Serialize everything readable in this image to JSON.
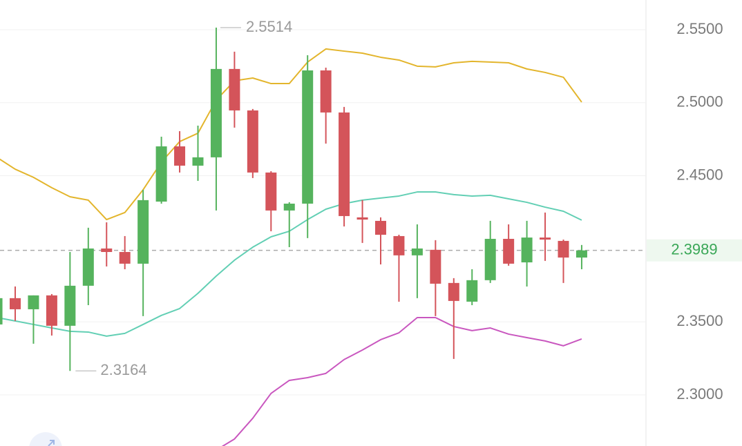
{
  "chart_data": {
    "type": "candlestick",
    "ylim": [
      2.265,
      2.5703
    ],
    "yticks": [
      {
        "value": 2.55,
        "label": "2.5500"
      },
      {
        "value": 2.5,
        "label": "2.5000"
      },
      {
        "value": 2.45,
        "label": "2.4500"
      },
      {
        "value": 2.35,
        "label": "2.3500"
      },
      {
        "value": 2.3,
        "label": "2.3000"
      }
    ],
    "grid": true,
    "up_color": "#55b35d",
    "down_color": "#d4545a",
    "candles": [
      {
        "open": 2.3482,
        "high": 2.3695,
        "low": 2.3458,
        "close": 2.3662
      },
      {
        "open": 2.3662,
        "high": 2.3742,
        "low": 2.3506,
        "close": 2.3586
      },
      {
        "open": 2.3586,
        "high": 2.3681,
        "low": 2.335,
        "close": 2.3681
      },
      {
        "open": 2.3681,
        "high": 2.369,
        "low": 2.3406,
        "close": 2.3473
      },
      {
        "open": 2.3473,
        "high": 2.3978,
        "low": 2.3164,
        "close": 2.3747
      },
      {
        "open": 2.3747,
        "high": 2.4144,
        "low": 2.3614,
        "close": 2.4002
      },
      {
        "open": 2.4002,
        "high": 2.4181,
        "low": 2.3879,
        "close": 2.3978
      },
      {
        "open": 2.3978,
        "high": 2.4087,
        "low": 2.386,
        "close": 2.3898
      },
      {
        "open": 2.3898,
        "high": 2.4404,
        "low": 2.3539,
        "close": 2.4333
      },
      {
        "open": 2.4323,
        "high": 2.4767,
        "low": 2.4309,
        "close": 2.4701
      },
      {
        "open": 2.4701,
        "high": 2.4805,
        "low": 2.4522,
        "close": 2.4569
      },
      {
        "open": 2.4569,
        "high": 2.4843,
        "low": 2.4465,
        "close": 2.4626
      },
      {
        "open": 2.4626,
        "high": 2.5514,
        "low": 2.4262,
        "close": 2.5231
      },
      {
        "open": 2.5231,
        "high": 2.5349,
        "low": 2.4829,
        "close": 2.4947
      },
      {
        "open": 2.4947,
        "high": 2.4957,
        "low": 2.4484,
        "close": 2.4522
      },
      {
        "open": 2.4522,
        "high": 2.4531,
        "low": 2.412,
        "close": 2.4262
      },
      {
        "open": 2.4262,
        "high": 2.4319,
        "low": 2.4011,
        "close": 2.4309
      },
      {
        "open": 2.4309,
        "high": 2.5325,
        "low": 2.4073,
        "close": 2.5221
      },
      {
        "open": 2.5221,
        "high": 2.524,
        "low": 2.472,
        "close": 2.4933
      },
      {
        "open": 2.4933,
        "high": 2.4971,
        "low": 2.4153,
        "close": 2.4224
      },
      {
        "open": 2.4215,
        "high": 2.4333,
        "low": 2.404,
        "close": 2.42
      },
      {
        "open": 2.4191,
        "high": 2.4215,
        "low": 2.3893,
        "close": 2.4096
      },
      {
        "open": 2.4087,
        "high": 2.4096,
        "low": 2.3638,
        "close": 2.3955
      },
      {
        "open": 2.3955,
        "high": 2.4167,
        "low": 2.3662,
        "close": 2.4002
      },
      {
        "open": 2.3993,
        "high": 2.4059,
        "low": 2.3539,
        "close": 2.3761
      },
      {
        "open": 2.3766,
        "high": 2.3799,
        "low": 2.3246,
        "close": 2.3643
      },
      {
        "open": 2.3638,
        "high": 2.386,
        "low": 2.3614,
        "close": 2.3785
      },
      {
        "open": 2.3785,
        "high": 2.4191,
        "low": 2.3766,
        "close": 2.4068
      },
      {
        "open": 2.4068,
        "high": 2.4167,
        "low": 2.3884,
        "close": 2.3898
      },
      {
        "open": 2.3907,
        "high": 2.4191,
        "low": 2.3742,
        "close": 2.4077
      },
      {
        "open": 2.4077,
        "high": 2.4248,
        "low": 2.3917,
        "close": 2.4063
      },
      {
        "open": 2.4054,
        "high": 2.4063,
        "low": 2.3766,
        "close": 2.394
      },
      {
        "open": 2.394,
        "high": 2.4026,
        "low": 2.386,
        "close": 2.3989
      }
    ],
    "bands": [
      {
        "color": "#e3b52c",
        "values": [
          2.4626,
          2.4545,
          2.4489,
          2.4418,
          2.4356,
          2.4333,
          2.42,
          2.4248,
          2.4404,
          2.4593,
          2.4734,
          2.4791,
          2.5018,
          2.515,
          2.5169,
          2.5131,
          2.5131,
          2.5278,
          2.5368,
          2.5353,
          2.5339,
          2.5311,
          2.5292,
          2.525,
          2.5245,
          2.5273,
          2.5283,
          2.5278,
          2.5273,
          2.5231,
          2.5207,
          2.5174,
          2.5004
        ]
      },
      {
        "color": "#62cfb4",
        "values": [
          2.3529,
          2.3506,
          2.3482,
          2.3458,
          2.3435,
          2.343,
          2.3402,
          2.3421,
          2.3482,
          2.3544,
          2.3591,
          2.3695,
          2.3813,
          2.3922,
          2.4011,
          2.4082,
          2.412,
          2.42,
          2.4271,
          2.4309,
          2.4333,
          2.4347,
          2.4361,
          2.4389,
          2.4389,
          2.4371,
          2.4361,
          2.4366,
          2.4342,
          2.4318,
          2.4285,
          2.4257,
          2.4196
        ]
      },
      {
        "color": "#c957bf",
        "values": [
          null,
          null,
          null,
          null,
          null,
          null,
          null,
          null,
          null,
          null,
          null,
          null,
          2.2622,
          2.2698,
          2.284,
          2.301,
          2.3099,
          2.3118,
          2.3147,
          2.3242,
          2.3307,
          2.3378,
          2.3425,
          2.3529,
          2.3529,
          2.3468,
          2.344,
          2.3458,
          2.3416,
          2.3392,
          2.3369,
          2.3336,
          2.3383
        ]
      }
    ],
    "max_label": 2.5514,
    "min_label": 2.3164,
    "last_price": 2.3989,
    "last_price_color": "#3aa757"
  }
}
